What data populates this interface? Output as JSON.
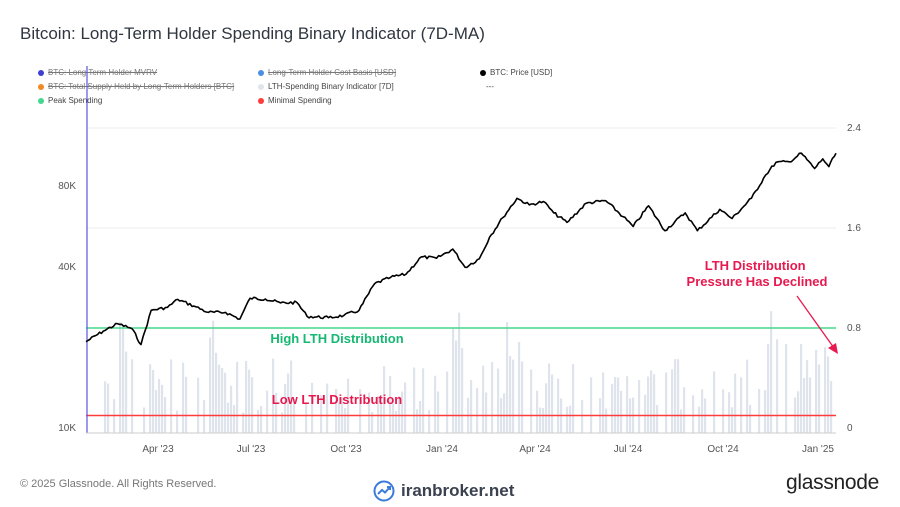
{
  "page": {
    "title": "Bitcoin: Long-Term Holder Spending Binary Indicator (7D-MA)",
    "copyright": "© 2025 Glassnode. All Rights Reserved.",
    "watermark": "iranbroker.net",
    "brand": "glassnode"
  },
  "legend": [
    {
      "label": "BTC: Long Term Holder MVRV",
      "color": "#3f3fd0",
      "disabled": true
    },
    {
      "label": "Long-Term Holder Cost Basis [USD]",
      "color": "#4a90e2",
      "disabled": true
    },
    {
      "label": "BTC: Price [USD]",
      "color": "#000000",
      "disabled": false
    },
    {
      "label": "BTC: Total Supply Held by Long-Term Holders [BTC]",
      "color": "#f08a24",
      "disabled": true
    },
    {
      "label": "LTH-Spending Binary Indicator [7D]",
      "color": "#dfe4ec",
      "disabled": false
    },
    {
      "label": "---",
      "color": "",
      "disabled": false
    },
    {
      "label": "Peak Spending",
      "color": "#43d98c",
      "disabled": false
    },
    {
      "label": "Minimal Spending",
      "color": "#ff3b3b",
      "disabled": false
    }
  ],
  "chart_data": {
    "type": "line",
    "x_ticks": [
      "Apr '23",
      "Jul '23",
      "Oct '23",
      "Jan '24",
      "Apr '24",
      "Jul '24",
      "Oct '24",
      "Jan '25"
    ],
    "y_left_ticks": [
      "10K",
      "40K",
      "80K"
    ],
    "y_right_ticks": [
      "0",
      "0.8",
      "1.6",
      "2.4"
    ],
    "y_right_range": [
      0,
      2.4
    ],
    "left_scale": "log",
    "series": [
      {
        "name": "BTC: Price [USD]",
        "color": "#000000",
        "points": [
          [
            "2023-01-15",
            21000
          ],
          [
            "2023-02-01",
            23000
          ],
          [
            "2023-02-15",
            24500
          ],
          [
            "2023-03-01",
            23500
          ],
          [
            "2023-03-10",
            20500
          ],
          [
            "2023-03-20",
            27500
          ],
          [
            "2023-04-05",
            28200
          ],
          [
            "2023-04-15",
            30200
          ],
          [
            "2023-05-01",
            28500
          ],
          [
            "2023-05-15",
            27000
          ],
          [
            "2023-06-01",
            27000
          ],
          [
            "2023-06-15",
            25500
          ],
          [
            "2023-06-25",
            30500
          ],
          [
            "2023-07-10",
            30300
          ],
          [
            "2023-07-25",
            29300
          ],
          [
            "2023-08-10",
            29400
          ],
          [
            "2023-08-20",
            26100
          ],
          [
            "2023-09-10",
            25800
          ],
          [
            "2023-09-25",
            26300
          ],
          [
            "2023-10-10",
            27500
          ],
          [
            "2023-10-25",
            34500
          ],
          [
            "2023-11-10",
            36500
          ],
          [
            "2023-11-25",
            37500
          ],
          [
            "2023-12-10",
            43500
          ],
          [
            "2023-12-25",
            43000
          ],
          [
            "2024-01-10",
            46500
          ],
          [
            "2024-01-22",
            39800
          ],
          [
            "2024-02-05",
            42800
          ],
          [
            "2024-02-15",
            51500
          ],
          [
            "2024-02-28",
            61000
          ],
          [
            "2024-03-13",
            72000
          ],
          [
            "2024-03-25",
            68000
          ],
          [
            "2024-04-08",
            70000
          ],
          [
            "2024-04-18",
            63500
          ],
          [
            "2024-05-01",
            58500
          ],
          [
            "2024-05-20",
            69000
          ],
          [
            "2024-06-08",
            70500
          ],
          [
            "2024-06-25",
            61500
          ],
          [
            "2024-07-05",
            56500
          ],
          [
            "2024-07-20",
            67500
          ],
          [
            "2024-08-05",
            54500
          ],
          [
            "2024-08-25",
            63500
          ],
          [
            "2024-09-06",
            54500
          ],
          [
            "2024-09-28",
            65500
          ],
          [
            "2024-10-10",
            60500
          ],
          [
            "2024-10-29",
            72000
          ],
          [
            "2024-11-12",
            88000
          ],
          [
            "2024-11-22",
            98000
          ],
          [
            "2024-12-05",
            98500
          ],
          [
            "2024-12-17",
            106000
          ],
          [
            "2024-12-30",
            93000
          ],
          [
            "2025-01-07",
            101000
          ],
          [
            "2025-01-13",
            94500
          ],
          [
            "2025-01-20",
            106000
          ]
        ]
      }
    ],
    "reference_lines": [
      {
        "name": "Peak Spending",
        "value": 0.8,
        "color": "#43d98c"
      },
      {
        "name": "Minimal Spending",
        "value": 0.1,
        "color": "#ff3b3b"
      }
    ],
    "annotations": [
      {
        "text": "High LTH Distribution",
        "color": "#16b872"
      },
      {
        "text": "Low LTH Distribution",
        "color": "#e8194f"
      },
      {
        "text": "LTH Distribution Pressure Has Declined",
        "color": "#e8194f"
      }
    ]
  }
}
